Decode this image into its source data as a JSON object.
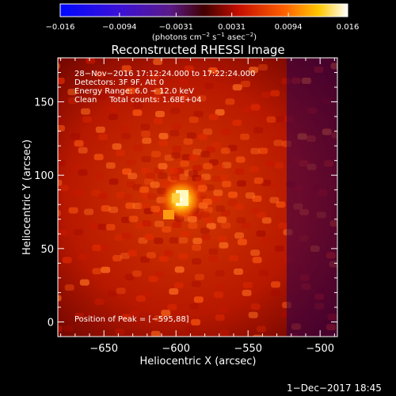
{
  "chart_data": {
    "type": "heatmap",
    "title": "Reconstructed RHESSI Image",
    "xlabel": "Heliocentric X (arcsec)",
    "ylabel": "Heliocentric Y (arcsec)",
    "xlim": [
      -682,
      -488
    ],
    "ylim": [
      -10,
      180
    ],
    "xticks": [
      -650,
      -600,
      -550,
      -500
    ],
    "yticks": [
      0,
      50,
      100,
      150
    ],
    "xtick_labels": [
      "−650",
      "−600",
      "−550",
      "−500"
    ],
    "ytick_labels": [
      "0",
      "50",
      "100",
      "150"
    ],
    "colorbar": {
      "range": [
        -0.016,
        0.016
      ],
      "ticks": [
        -0.016,
        -0.0094,
        -0.0031,
        0.0031,
        0.0094,
        0.016
      ],
      "tick_labels": [
        "−0.016",
        "−0.0094",
        "−0.0031",
        "0.0031",
        "0.0094",
        "0.016"
      ],
      "unit_text": "(photons cm",
      "unit_sup1": "−2",
      "unit_mid": " s",
      "unit_sup2": "−1",
      "unit_mid2": " asec",
      "unit_sup3": "−2",
      "unit_end": ")",
      "colormap": "fire (blue-purple-red-orange-yellow-white)"
    },
    "peak": {
      "x": -595,
      "y": 88
    },
    "annotations": {
      "time": "28−Nov−2016 17:12:24.000 to 17:22:24.000",
      "detectors": "Detectors: 3F 9F, Att 0",
      "energy": "Energy Range: 6.0 − 12.0 keV",
      "method": "Clean     Total counts: 1.68E+04",
      "peak_text": "Position of Peak = [−595,88]"
    }
  },
  "footer": {
    "timestamp": "1−Dec−2017 18:45"
  }
}
